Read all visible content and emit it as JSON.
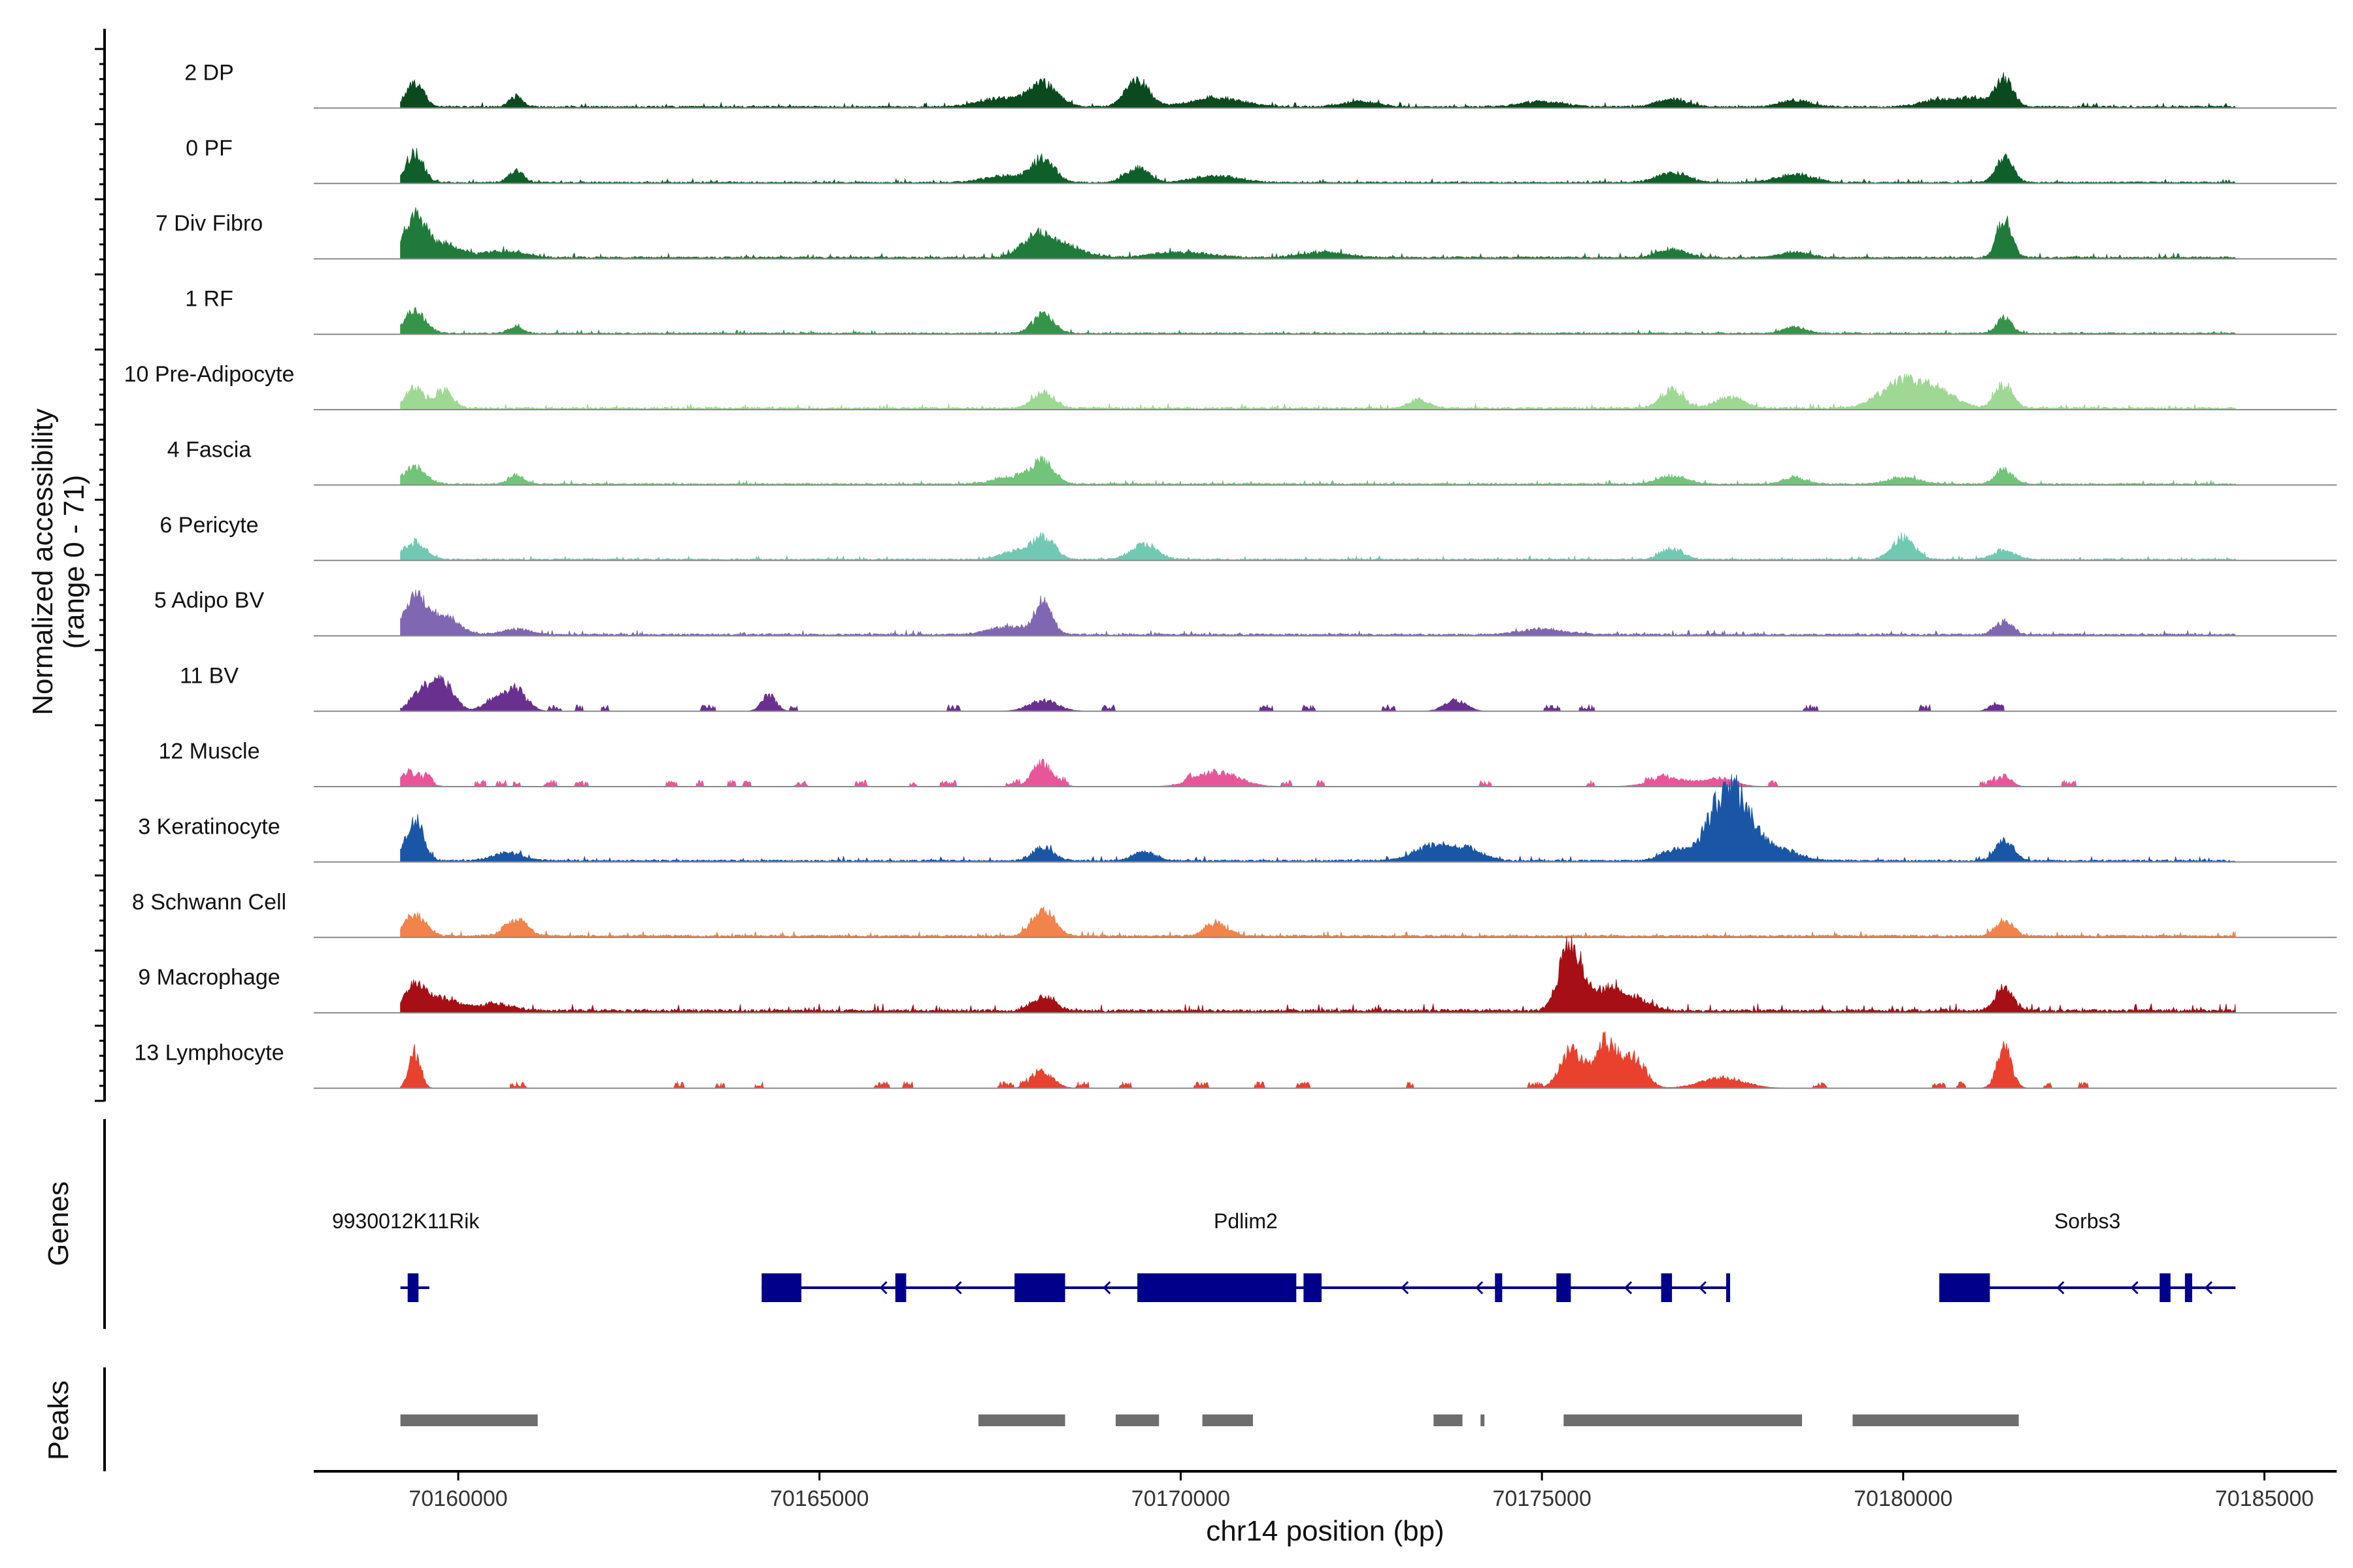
{
  "chart_data": {
    "type": "area",
    "subtype": "genome-browser coverage tracks",
    "chromosome": "chr14",
    "region": [
      70158000,
      70186000
    ],
    "xlabel": "chr14 position (bp)",
    "ylabel_line1": "Normalized accessibility",
    "ylabel_line2": "(range 0 - 71)",
    "y_range": [
      0,
      71
    ],
    "x_ticks": [
      70160000,
      70165000,
      70170000,
      70175000,
      70180000,
      70185000
    ],
    "x_tick_labels": [
      "70160000",
      "70165000",
      "70170000",
      "70175000",
      "70180000",
      "70185000"
    ],
    "tracks": [
      {
        "name": "2 DP",
        "color": "#0b4a1e",
        "noise": 1.3,
        "end": 70184600,
        "peaks": [
          [
            70159400,
            18,
            120
          ],
          [
            70160800,
            8,
            90
          ],
          [
            70167500,
            6,
            300
          ],
          [
            70168100,
            17,
            200
          ],
          [
            70169400,
            20,
            160
          ],
          [
            70170500,
            7,
            350
          ],
          [
            70172500,
            4,
            250
          ],
          [
            70175000,
            4,
            300
          ],
          [
            70176800,
            6,
            200
          ],
          [
            70178500,
            5,
            200
          ],
          [
            70180500,
            5,
            250
          ],
          [
            70181000,
            6,
            220
          ],
          [
            70181400,
            20,
            120
          ]
        ]
      },
      {
        "name": "0 PF",
        "color": "#0e5f2a",
        "noise": 1.1,
        "end": 70184600,
        "peaks": [
          [
            70159400,
            22,
            120
          ],
          [
            70160800,
            9,
            100
          ],
          [
            70167600,
            5,
            300
          ],
          [
            70168100,
            18,
            150
          ],
          [
            70169400,
            11,
            160
          ],
          [
            70170500,
            5,
            300
          ],
          [
            70176800,
            8,
            200
          ],
          [
            70178500,
            6,
            250
          ],
          [
            70181400,
            18,
            120
          ]
        ]
      },
      {
        "name": "7 Div Fibro",
        "color": "#1f7a3b",
        "noise": 1.4,
        "end": 70184600,
        "peaks": [
          [
            70159400,
            30,
            150
          ],
          [
            70159800,
            10,
            200
          ],
          [
            70160600,
            5,
            300
          ],
          [
            70168000,
            16,
            200
          ],
          [
            70168400,
            8,
            250
          ],
          [
            70170000,
            4,
            400
          ],
          [
            70172000,
            4,
            300
          ],
          [
            70176800,
            6,
            200
          ],
          [
            70178500,
            4,
            200
          ],
          [
            70181400,
            30,
            100
          ]
        ]
      },
      {
        "name": "1 RF",
        "color": "#35944a",
        "noise": 1.0,
        "end": 70184600,
        "peaks": [
          [
            70159400,
            16,
            150
          ],
          [
            70160800,
            5,
            100
          ],
          [
            70168100,
            14,
            150
          ],
          [
            70178500,
            5,
            150
          ],
          [
            70181400,
            12,
            100
          ]
        ]
      },
      {
        "name": "10 Pre-Adipocyte",
        "color": "#9fd894",
        "noise": 1.5,
        "end": 70184600,
        "peaks": [
          [
            70159400,
            15,
            120
          ],
          [
            70159800,
            14,
            120
          ],
          [
            70168100,
            12,
            150
          ],
          [
            70173300,
            6,
            150
          ],
          [
            70176800,
            14,
            150
          ],
          [
            70177600,
            8,
            200
          ],
          [
            70180000,
            20,
            300
          ],
          [
            70180500,
            10,
            250
          ],
          [
            70181400,
            18,
            120
          ]
        ]
      },
      {
        "name": "4 Fascia",
        "color": "#71c479",
        "noise": 1.1,
        "end": 70184600,
        "peaks": [
          [
            70159400,
            13,
            150
          ],
          [
            70160800,
            7,
            100
          ],
          [
            70167700,
            6,
            250
          ],
          [
            70168100,
            16,
            150
          ],
          [
            70176800,
            6,
            200
          ],
          [
            70178500,
            5,
            150
          ],
          [
            70180000,
            5,
            200
          ],
          [
            70181400,
            11,
            120
          ]
        ]
      },
      {
        "name": "6 Pericyte",
        "color": "#72c9b3",
        "noise": 1.1,
        "end": 70184600,
        "peaks": [
          [
            70159400,
            13,
            150
          ],
          [
            70167700,
            6,
            200
          ],
          [
            70168100,
            17,
            150
          ],
          [
            70169500,
            11,
            180
          ],
          [
            70176800,
            8,
            150
          ],
          [
            70180000,
            17,
            150
          ],
          [
            70181400,
            7,
            150
          ]
        ]
      },
      {
        "name": "5 Adipo BV",
        "color": "#8067b1",
        "noise": 1.3,
        "end": 70184600,
        "peaks": [
          [
            70159400,
            28,
            150
          ],
          [
            70159800,
            14,
            200
          ],
          [
            70160800,
            4,
            200
          ],
          [
            70168100,
            24,
            120
          ],
          [
            70167600,
            6,
            250
          ],
          [
            70175000,
            4,
            300
          ],
          [
            70181400,
            10,
            120
          ]
        ]
      },
      {
        "name": "11 BV",
        "color": "#6a3090",
        "noise": 1.6,
        "end": 70181400,
        "sparse": true,
        "peaks": [
          [
            70159500,
            16,
            150
          ],
          [
            70159800,
            20,
            150
          ],
          [
            70160500,
            9,
            150
          ],
          [
            70160800,
            16,
            150
          ],
          [
            70164300,
            12,
            100
          ],
          [
            70168100,
            8,
            200
          ],
          [
            70173800,
            8,
            150
          ],
          [
            70181300,
            6,
            100
          ]
        ]
      },
      {
        "name": "12 Muscle",
        "color": "#e8569a",
        "noise": 1.2,
        "end": 70183000,
        "sparse": true,
        "peaks": [
          [
            70159400,
            10,
            150
          ],
          [
            70168100,
            16,
            150
          ],
          [
            70170500,
            11,
            300
          ],
          [
            70176800,
            6,
            300
          ],
          [
            70177500,
            6,
            200
          ],
          [
            70181400,
            8,
            100
          ]
        ]
      },
      {
        "name": "3 Keratinocyte",
        "color": "#1b56a6",
        "noise": 1.4,
        "end": 70184600,
        "peaks": [
          [
            70159400,
            30,
            120
          ],
          [
            70160700,
            6,
            200
          ],
          [
            70168100,
            10,
            150
          ],
          [
            70169500,
            7,
            150
          ],
          [
            70173500,
            12,
            250
          ],
          [
            70174000,
            8,
            200
          ],
          [
            70176800,
            8,
            150
          ],
          [
            70177600,
            55,
            280
          ],
          [
            70178300,
            8,
            250
          ],
          [
            70181400,
            16,
            120
          ]
        ]
      },
      {
        "name": "8 Schwann Cell",
        "color": "#f2834b",
        "noise": 1.5,
        "end": 70184600,
        "peaks": [
          [
            70159400,
            16,
            150
          ],
          [
            70160800,
            13,
            150
          ],
          [
            70168100,
            20,
            150
          ],
          [
            70170500,
            10,
            150
          ],
          [
            70181400,
            12,
            120
          ]
        ]
      },
      {
        "name": "9 Macrophage",
        "color": "#a50f15",
        "noise": 2.2,
        "end": 70184600,
        "peaks": [
          [
            70159400,
            20,
            150
          ],
          [
            70159800,
            9,
            200
          ],
          [
            70160500,
            5,
            250
          ],
          [
            70168100,
            11,
            150
          ],
          [
            70175400,
            52,
            150
          ],
          [
            70175900,
            16,
            200
          ],
          [
            70176300,
            8,
            200
          ],
          [
            70181400,
            18,
            120
          ]
        ]
      },
      {
        "name": "13 Lymphocyte",
        "color": "#e8412e",
        "noise": 1.8,
        "end": 70183600,
        "sparse": true,
        "peaks": [
          [
            70159400,
            28,
            80
          ],
          [
            70168100,
            11,
            150
          ],
          [
            70175400,
            28,
            150
          ],
          [
            70175900,
            32,
            180
          ],
          [
            70176300,
            20,
            150
          ],
          [
            70177500,
            8,
            300
          ],
          [
            70181400,
            30,
            100
          ]
        ]
      }
    ],
    "genes": {
      "title": "Genes",
      "items": [
        {
          "name": "9930012K11Rik",
          "start": 70159200,
          "end": 70159600,
          "strand": "-",
          "exons": [
            [
              70159300,
              70159450
            ]
          ]
        },
        {
          "name": "Pdlim2",
          "start": 70164200,
          "end": 70177600,
          "strand": "-",
          "exons": [
            [
              70164200,
              70164750
            ],
            [
              70166050,
              70166200
            ],
            [
              70167700,
              70168400
            ],
            [
              70169400,
              70171600
            ],
            [
              70171700,
              70171950
            ],
            [
              70174350,
              70174450
            ],
            [
              70175200,
              70175400
            ],
            [
              70176650,
              70176800
            ],
            [
              70177550,
              70177600
            ]
          ]
        },
        {
          "name": "Sorbs3",
          "start": 70180500,
          "end": 70184600,
          "strand": "-",
          "exons": [
            [
              70180500,
              70181200
            ],
            [
              70183550,
              70183700
            ],
            [
              70183900,
              70184000
            ]
          ]
        }
      ]
    },
    "peaks_track": {
      "title": "Peaks",
      "regions": [
        [
          70159200,
          70161100
        ],
        [
          70167200,
          70168400
        ],
        [
          70169100,
          70169700
        ],
        [
          70170300,
          70171000
        ],
        [
          70173500,
          70173900
        ],
        [
          70174150,
          70174200
        ],
        [
          70175300,
          70178600
        ],
        [
          70179300,
          70181600
        ]
      ]
    }
  },
  "colors": {
    "gene": "#00008b",
    "peak": "#6e6e6e",
    "baseline": "#8a8a8a",
    "axis": "#000000"
  }
}
